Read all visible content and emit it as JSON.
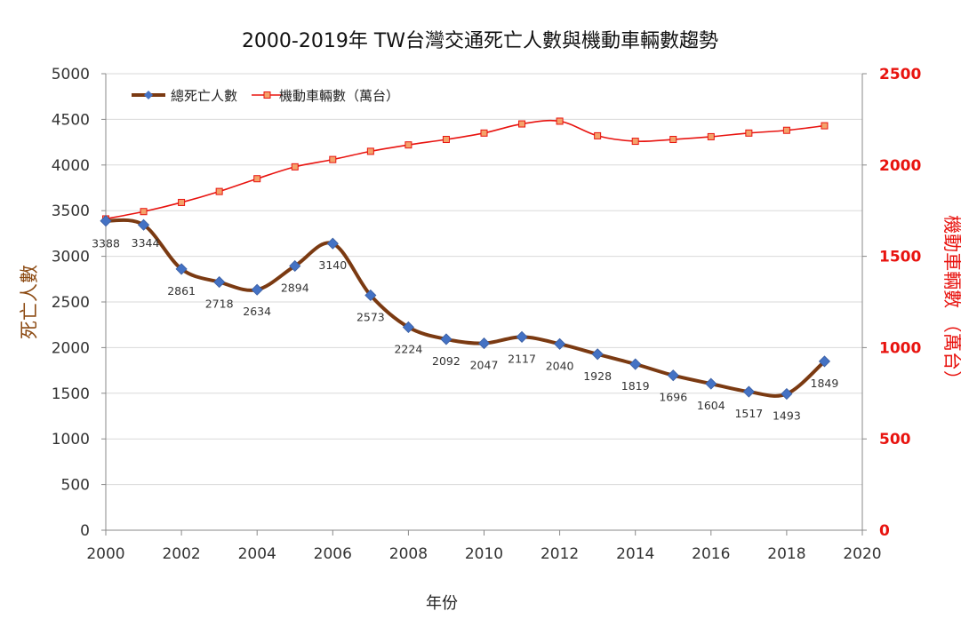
{
  "chart_data": {
    "type": "line",
    "title": "2000-2019年 TW台灣交通死亡人數與機動車輛數趨勢",
    "xlabel": "年份",
    "ylabel": "死亡人數",
    "ylabel_right": "機動車輛數 （萬台）",
    "xlim": [
      2000,
      2020
    ],
    "ylim": [
      0,
      5000
    ],
    "ylim_right": [
      0,
      2500
    ],
    "x_ticks": [
      "2000",
      "2002",
      "2004",
      "2006",
      "2008",
      "2010",
      "2012",
      "2014",
      "2016",
      "2018",
      "2020"
    ],
    "y_ticks": [
      "0",
      "500",
      "1000",
      "1500",
      "2000",
      "2500",
      "3000",
      "3500",
      "4000",
      "4500",
      "5000"
    ],
    "y_ticks_right": [
      "0",
      "500",
      "1000",
      "1500",
      "2000",
      "2500"
    ],
    "grid": true,
    "legend_position": "top-left",
    "series": [
      {
        "name": "總死亡人數",
        "axis": "left",
        "color": "#7b3a12",
        "marker_color": "#4472c4",
        "marker": "diamond",
        "smooth": true,
        "x": [
          2000,
          2001,
          2002,
          2003,
          2004,
          2005,
          2006,
          2007,
          2008,
          2009,
          2010,
          2011,
          2012,
          2013,
          2014,
          2015,
          2016,
          2017,
          2018,
          2019
        ],
        "values": [
          3388,
          3344,
          2861,
          2718,
          2634,
          2894,
          3140,
          2573,
          2224,
          2092,
          2047,
          2117,
          2040,
          1928,
          1819,
          1696,
          1604,
          1517,
          1493,
          1849
        ],
        "labels": [
          "3388",
          "3344",
          "2861",
          "2718",
          "2634",
          "2894",
          "3140",
          "2573",
          "2224",
          "2092",
          "2047",
          "2117",
          "2040",
          "1928",
          "1819",
          "1696",
          "1604",
          "1517",
          "1493",
          "1849"
        ]
      },
      {
        "name": "機動車輛數（萬台）",
        "axis": "right",
        "color": "#e8130f",
        "marker_color": "#f4a26a",
        "marker": "square",
        "smooth": true,
        "x": [
          2000,
          2001,
          2002,
          2003,
          2004,
          2005,
          2006,
          2007,
          2008,
          2009,
          2010,
          2011,
          2012,
          2013,
          2014,
          2015,
          2016,
          2017,
          2018,
          2019
        ],
        "values": [
          1705,
          1745,
          1795,
          1855,
          1925,
          1990,
          2030,
          2075,
          2110,
          2140,
          2175,
          2225,
          2240,
          2160,
          2130,
          2140,
          2155,
          2175,
          2190,
          2215
        ]
      }
    ]
  }
}
